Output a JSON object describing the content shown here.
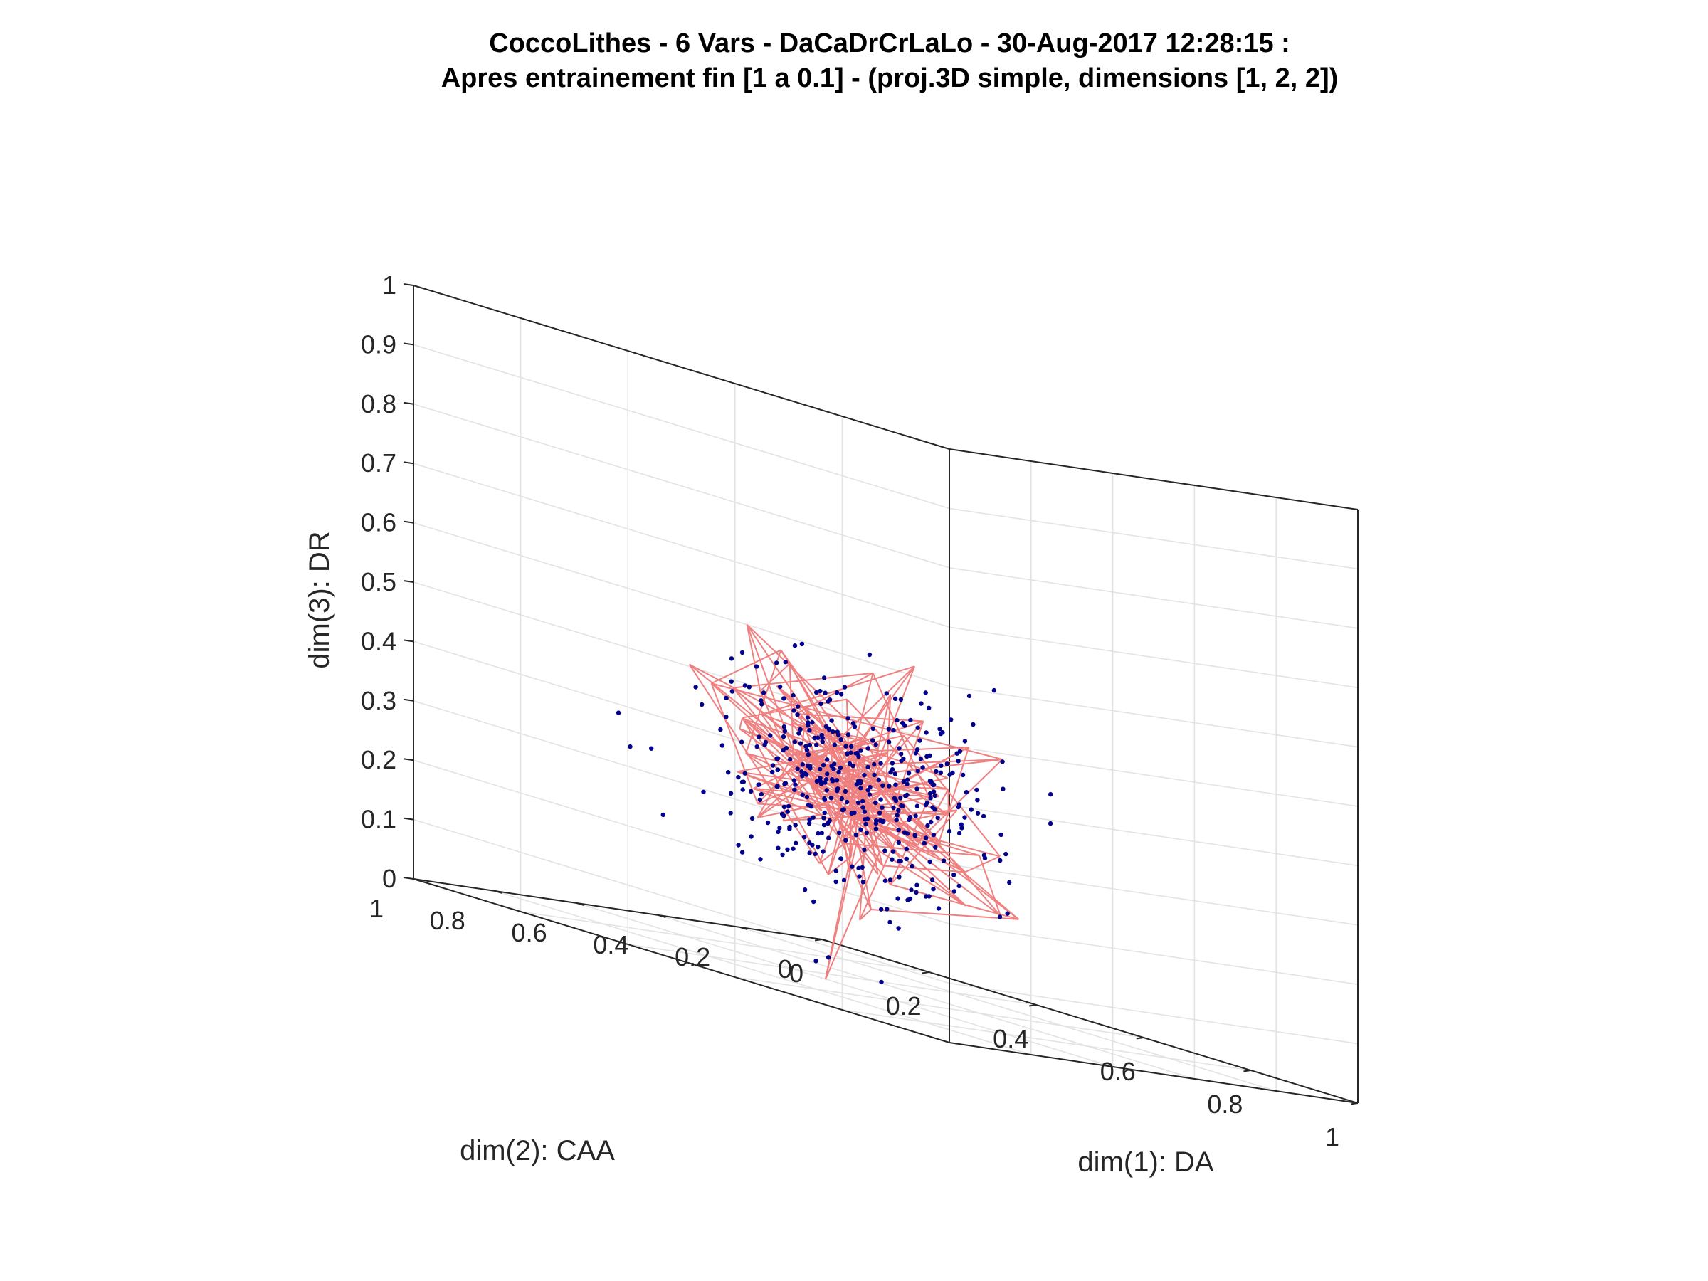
{
  "chart_data": {
    "type": "scatter",
    "title": "CoccoLithes - 6 Vars - DaCaDrCrLaLo - 30-Aug-2017 12:28:15 :",
    "subtitle": "Apres entrainement fin [1 a 0.1] - (proj.3D simple, dimensions [1, 2, 2])",
    "xlabel": "dim(1): DA",
    "ylabel": "dim(2): CAA",
    "zlabel": "dim(3): DR",
    "xlim": [
      0,
      1
    ],
    "ylim": [
      0,
      1
    ],
    "zlim": [
      0,
      1
    ],
    "x_ticks": [
      "0",
      "0.2",
      "0.4",
      "0.6",
      "0.8",
      "1"
    ],
    "y_ticks": [
      "0",
      "0.2",
      "0.4",
      "0.6",
      "0.8",
      "1"
    ],
    "z_ticks": [
      "0",
      "0.1",
      "0.2",
      "0.3",
      "0.4",
      "0.5",
      "0.6",
      "0.7",
      "0.8",
      "0.9",
      "1"
    ],
    "grid": true,
    "view": "3D",
    "colors": {
      "points": "#00008b",
      "map": "#f08080",
      "axes": "#262626",
      "grid": "#e3e3e3"
    },
    "point_count": 420,
    "point_center": [
      0.38,
      0.42,
      0.32
    ],
    "point_spread": [
      0.11,
      0.11,
      0.09
    ],
    "point_seed": 12345,
    "map_node_count": 110,
    "map_seed": 777
  }
}
